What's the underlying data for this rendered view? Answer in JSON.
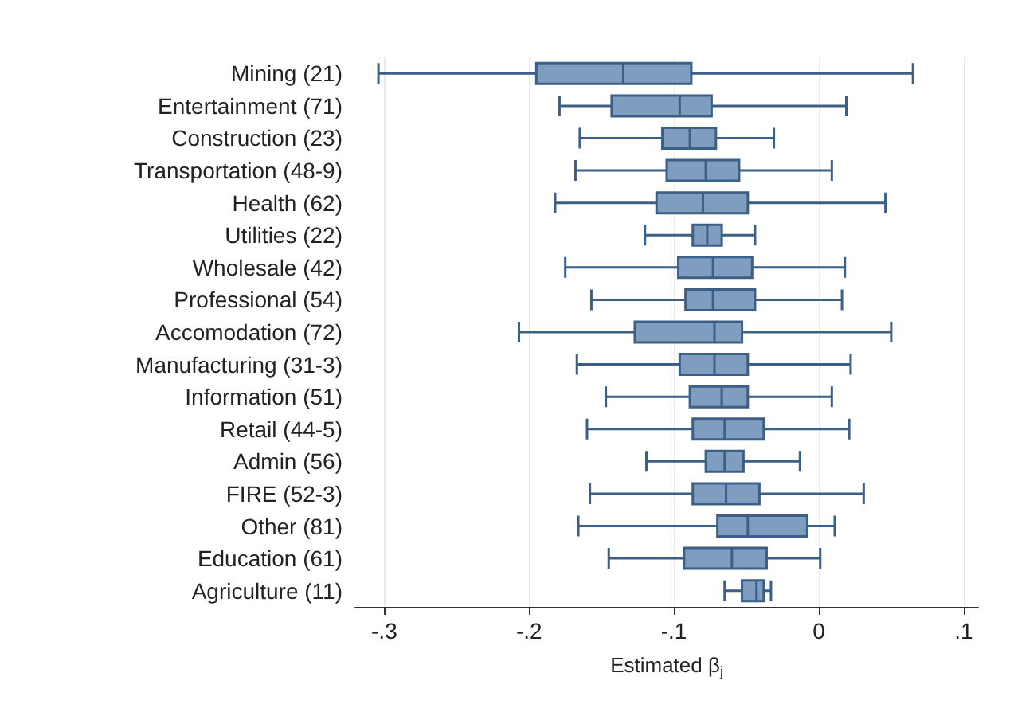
{
  "chart_data": {
    "type": "box",
    "xlabel": "Estimated β$_{j}$",
    "orientation": "horizontal",
    "categories": [
      "Mining (21)",
      "Entertainment (71)",
      "Construction (23)",
      "Transportation (48-9)",
      "Health (62)",
      "Utilities (22)",
      "Wholesale (42)",
      "Professional (54)",
      "Accomodation (72)",
      "Manufacturing (31-3)",
      "Information (51)",
      "Retail (44-5)",
      "Admin (56)",
      "FIRE (52-3)",
      "Other (81)",
      "Education (61)",
      "Agriculture (11)"
    ],
    "boxes": [
      {
        "low": -0.304,
        "q1": -0.195,
        "median": -0.135,
        "q3": -0.088,
        "high": 0.065
      },
      {
        "low": -0.179,
        "q1": -0.143,
        "median": -0.096,
        "q3": -0.074,
        "high": 0.019
      },
      {
        "low": -0.165,
        "q1": -0.108,
        "median": -0.089,
        "q3": -0.071,
        "high": -0.031
      },
      {
        "low": -0.168,
        "q1": -0.105,
        "median": -0.078,
        "q3": -0.055,
        "high": 0.009
      },
      {
        "low": -0.182,
        "q1": -0.112,
        "median": -0.08,
        "q3": -0.049,
        "high": 0.046
      },
      {
        "low": -0.12,
        "q1": -0.087,
        "median": -0.077,
        "q3": -0.067,
        "high": -0.044
      },
      {
        "low": -0.175,
        "q1": -0.097,
        "median": -0.073,
        "q3": -0.046,
        "high": 0.018
      },
      {
        "low": -0.157,
        "q1": -0.092,
        "median": -0.073,
        "q3": -0.044,
        "high": 0.016
      },
      {
        "low": -0.207,
        "q1": -0.127,
        "median": -0.072,
        "q3": -0.053,
        "high": 0.05
      },
      {
        "low": -0.167,
        "q1": -0.096,
        "median": -0.072,
        "q3": -0.049,
        "high": 0.022
      },
      {
        "low": -0.147,
        "q1": -0.089,
        "median": -0.067,
        "q3": -0.049,
        "high": 0.009
      },
      {
        "low": -0.16,
        "q1": -0.087,
        "median": -0.065,
        "q3": -0.038,
        "high": 0.021
      },
      {
        "low": -0.119,
        "q1": -0.078,
        "median": -0.065,
        "q3": -0.052,
        "high": -0.013
      },
      {
        "low": -0.158,
        "q1": -0.087,
        "median": -0.064,
        "q3": -0.041,
        "high": 0.031
      },
      {
        "low": -0.166,
        "q1": -0.07,
        "median": -0.049,
        "q3": -0.008,
        "high": 0.011
      },
      {
        "low": -0.145,
        "q1": -0.093,
        "median": -0.06,
        "q3": -0.036,
        "high": 0.001
      },
      {
        "low": -0.065,
        "q1": -0.053,
        "median": -0.043,
        "q3": -0.038,
        "high": -0.033
      }
    ],
    "color": "#7f9dbf",
    "xlim": [
      -0.32,
      0.11
    ],
    "xticks": [
      {
        "value": -0.3,
        "label": "-.3"
      },
      {
        "value": -0.2,
        "label": "-.2"
      },
      {
        "value": -0.1,
        "label": "-.1"
      },
      0,
      {
        "value": 0.1,
        "label": ".1"
      }
    ],
    "grid": "x"
  }
}
